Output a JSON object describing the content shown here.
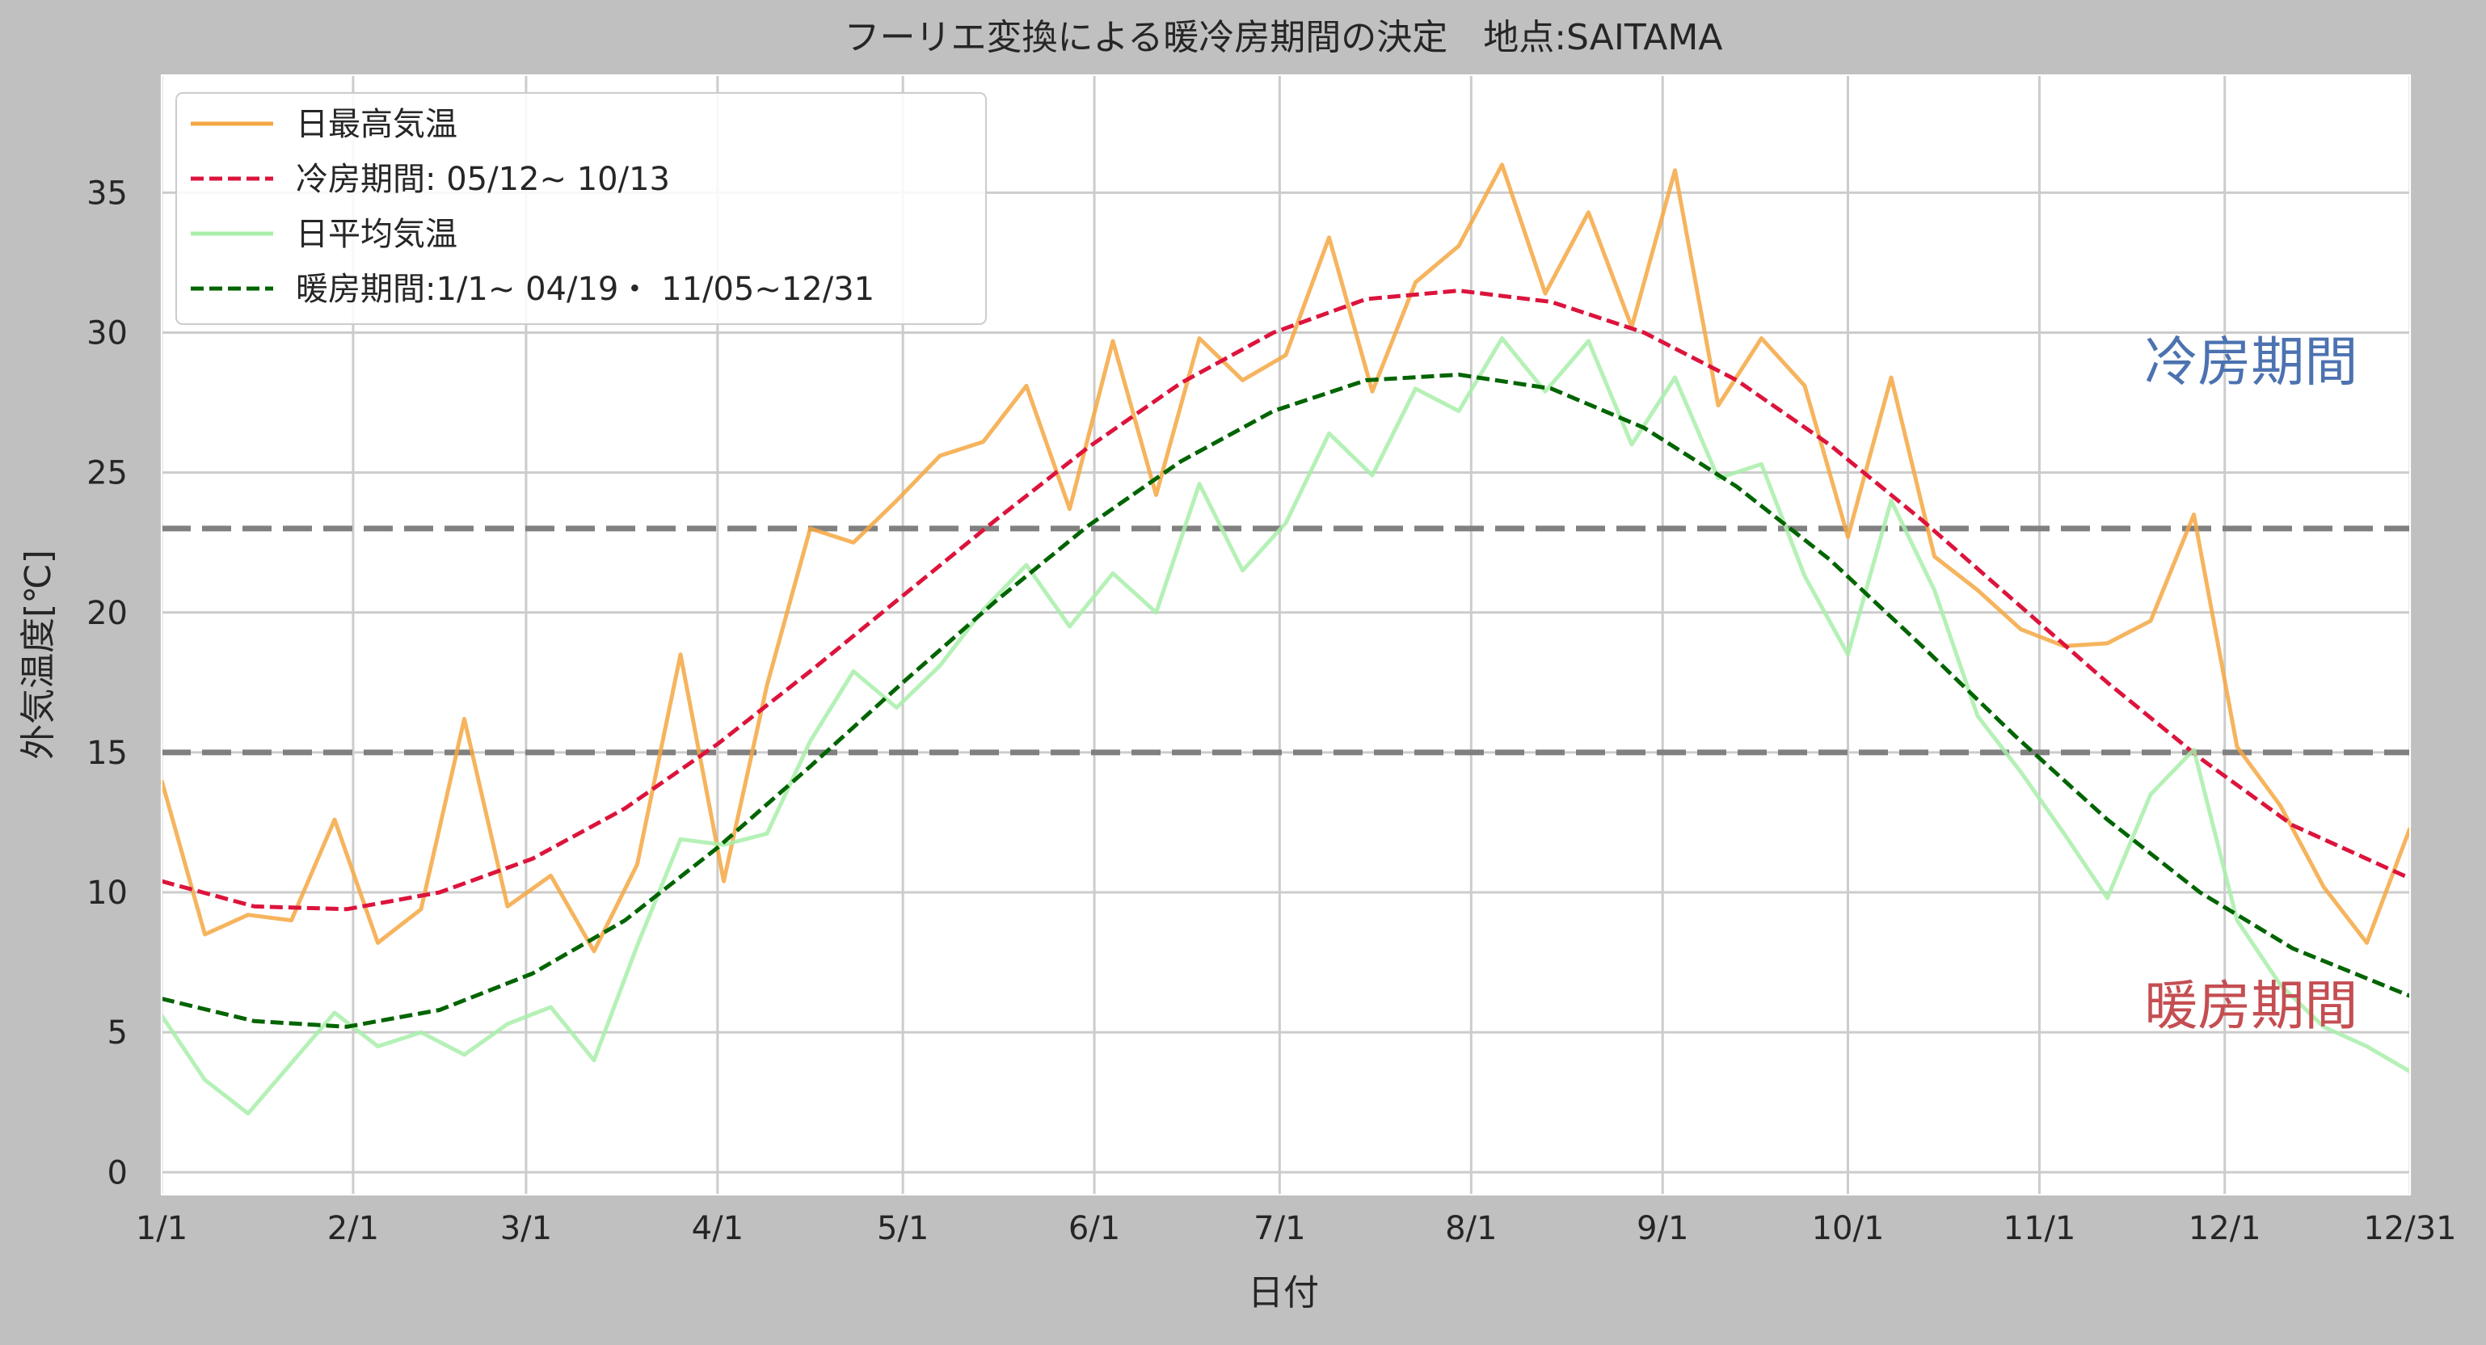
{
  "chart_data": {
    "type": "line",
    "title": "フーリエ変換による暖冷房期間の決定　地点:SAITAMA",
    "xlabel": "日付",
    "ylabel": "外気温度[℃]",
    "x_domain": [
      1,
      365
    ],
    "ylim": [
      -0.8,
      39.2
    ],
    "grid": true,
    "legend_position": "top-left",
    "x_ticks": [
      {
        "day": 1,
        "label": "1/1"
      },
      {
        "day": 32,
        "label": "2/1"
      },
      {
        "day": 60,
        "label": "3/1"
      },
      {
        "day": 91,
        "label": "4/1"
      },
      {
        "day": 121,
        "label": "5/1"
      },
      {
        "day": 152,
        "label": "6/1"
      },
      {
        "day": 182,
        "label": "7/1"
      },
      {
        "day": 213,
        "label": "8/1"
      },
      {
        "day": 244,
        "label": "9/1"
      },
      {
        "day": 274,
        "label": "10/1"
      },
      {
        "day": 305,
        "label": "11/1"
      },
      {
        "day": 335,
        "label": "12/1"
      },
      {
        "day": 365,
        "label": "12/31"
      }
    ],
    "y_ticks": [
      0,
      5,
      10,
      15,
      20,
      25,
      30,
      35
    ],
    "thresholds": [
      23,
      15
    ],
    "annotations": [
      {
        "text": "冷房期間",
        "color": "#4c72b0",
        "anchor_day": 322,
        "anchor_value": 28.3
      },
      {
        "text": "暖房期間",
        "color": "#c44e52",
        "anchor_day": 322,
        "anchor_value": 5.3
      }
    ],
    "series": [
      {
        "name": "日最高気温",
        "color": "#f5a742",
        "style": "solid",
        "x": [
          1,
          8,
          15,
          22,
          29,
          36,
          43,
          50,
          57,
          64,
          71,
          78,
          85,
          92,
          99,
          106,
          113,
          120,
          127,
          134,
          141,
          148,
          155,
          162,
          169,
          176,
          183,
          190,
          197,
          204,
          211,
          218,
          225,
          232,
          239,
          246,
          253,
          260,
          267,
          274,
          281,
          288,
          295,
          302,
          309,
          316,
          323,
          330,
          337,
          344,
          351,
          358,
          365
        ],
        "y": [
          14.0,
          8.5,
          9.2,
          9.0,
          12.6,
          8.2,
          9.4,
          16.2,
          9.5,
          10.6,
          7.9,
          11.0,
          18.5,
          10.4,
          17.4,
          23.0,
          22.5,
          24.0,
          25.6,
          26.1,
          28.1,
          23.7,
          29.7,
          24.2,
          29.8,
          28.3,
          29.2,
          33.4,
          27.9,
          31.8,
          33.1,
          36.0,
          31.4,
          34.3,
          30.2,
          35.8,
          27.4,
          29.8,
          28.1,
          22.7,
          28.4,
          22.0,
          20.8,
          19.4,
          18.8,
          18.9,
          19.7,
          23.5,
          15.2,
          13.1,
          10.2,
          8.2,
          12.3
        ]
      },
      {
        "name": "冷房期間: 05/12~ 10/13",
        "color": "#dc143c",
        "style": "dashed",
        "x": [
          1,
          16,
          31,
          46,
          61,
          76,
          91,
          106,
          121,
          136,
          151,
          166,
          181,
          196,
          211,
          226,
          241,
          256,
          271,
          286,
          301,
          316,
          331,
          346,
          365
        ],
        "y": [
          10.4,
          9.5,
          9.4,
          10.0,
          11.2,
          13.0,
          15.3,
          17.9,
          20.6,
          23.3,
          25.9,
          28.2,
          30.0,
          31.2,
          31.5,
          31.1,
          30.0,
          28.3,
          26.0,
          23.3,
          20.4,
          17.5,
          14.8,
          12.4,
          10.5
        ]
      },
      {
        "name": "日平均気温",
        "color": "#a8eeaa",
        "style": "solid",
        "x": [
          1,
          8,
          15,
          22,
          29,
          36,
          43,
          50,
          57,
          64,
          71,
          78,
          85,
          92,
          99,
          106,
          113,
          120,
          127,
          134,
          141,
          148,
          155,
          162,
          169,
          176,
          183,
          190,
          197,
          204,
          211,
          218,
          225,
          232,
          239,
          246,
          253,
          260,
          267,
          274,
          281,
          288,
          295,
          302,
          309,
          316,
          323,
          330,
          337,
          344,
          351,
          358,
          365
        ],
        "y": [
          5.6,
          3.3,
          2.1,
          3.9,
          5.7,
          4.5,
          5.0,
          4.2,
          5.3,
          5.9,
          4.0,
          8.1,
          11.9,
          11.7,
          12.1,
          15.4,
          17.9,
          16.6,
          18.1,
          20.1,
          21.7,
          19.5,
          21.4,
          20.0,
          24.6,
          21.5,
          23.2,
          26.4,
          24.9,
          28.0,
          27.2,
          29.8,
          27.9,
          29.7,
          26.0,
          28.4,
          24.8,
          25.3,
          21.3,
          18.5,
          24.0,
          20.8,
          16.3,
          14.3,
          12.1,
          9.8,
          13.5,
          15.1,
          9.0,
          6.7,
          5.2,
          4.5,
          3.6
        ]
      },
      {
        "name": "暖房期間:1/1~ 04/19・ 11/05~12/31",
        "color": "#006400",
        "style": "dashed",
        "x": [
          1,
          16,
          31,
          46,
          61,
          76,
          91,
          106,
          121,
          136,
          151,
          166,
          181,
          196,
          211,
          226,
          241,
          256,
          271,
          286,
          301,
          316,
          331,
          346,
          365
        ],
        "y": [
          6.2,
          5.4,
          5.2,
          5.8,
          7.1,
          9.0,
          11.6,
          14.5,
          17.5,
          20.4,
          23.1,
          25.4,
          27.2,
          28.3,
          28.5,
          28.0,
          26.6,
          24.5,
          21.9,
          18.8,
          15.6,
          12.6,
          10.0,
          8.0,
          6.3
        ]
      }
    ]
  }
}
